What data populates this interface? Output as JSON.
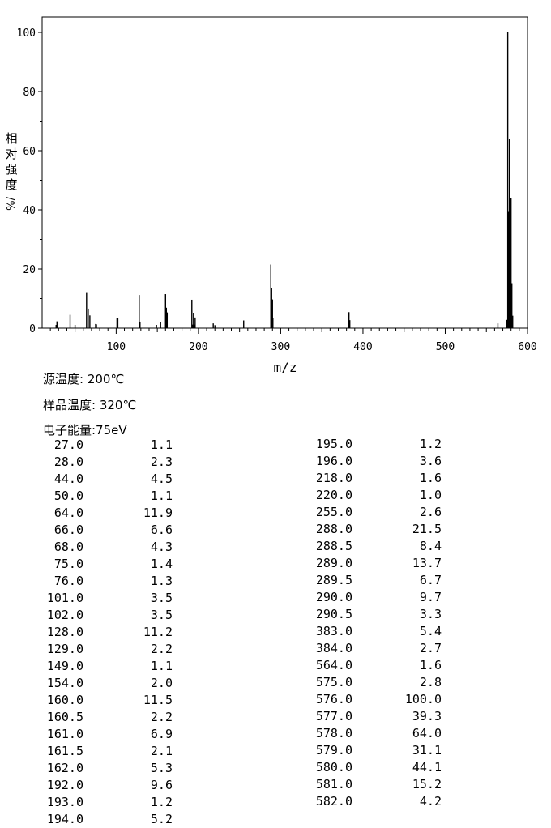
{
  "chart_data": {
    "type": "bar",
    "xlabel": "m/z",
    "ylabel_chars": [
      "相",
      "对",
      "强",
      "度"
    ],
    "ylabel_unit": "%/",
    "xlim": [
      10,
      600
    ],
    "ylim": [
      0,
      100
    ],
    "xticks": [
      100,
      200,
      300,
      400,
      500,
      600
    ],
    "yticks": [
      0,
      20,
      40,
      60,
      80,
      100
    ],
    "grid": false,
    "peaks": [
      {
        "mz": 27.0,
        "intensity": 1.1
      },
      {
        "mz": 28.0,
        "intensity": 2.3
      },
      {
        "mz": 44.0,
        "intensity": 4.5
      },
      {
        "mz": 50.0,
        "intensity": 1.1
      },
      {
        "mz": 64.0,
        "intensity": 11.9
      },
      {
        "mz": 66.0,
        "intensity": 6.6
      },
      {
        "mz": 68.0,
        "intensity": 4.3
      },
      {
        "mz": 75.0,
        "intensity": 1.4
      },
      {
        "mz": 76.0,
        "intensity": 1.3
      },
      {
        "mz": 101.0,
        "intensity": 3.5
      },
      {
        "mz": 102.0,
        "intensity": 3.5
      },
      {
        "mz": 128.0,
        "intensity": 11.2
      },
      {
        "mz": 129.0,
        "intensity": 2.2
      },
      {
        "mz": 149.0,
        "intensity": 1.1
      },
      {
        "mz": 154.0,
        "intensity": 2.0
      },
      {
        "mz": 160.0,
        "intensity": 11.5
      },
      {
        "mz": 160.5,
        "intensity": 2.2
      },
      {
        "mz": 161.0,
        "intensity": 6.9
      },
      {
        "mz": 161.5,
        "intensity": 2.1
      },
      {
        "mz": 162.0,
        "intensity": 5.3
      },
      {
        "mz": 192.0,
        "intensity": 9.6
      },
      {
        "mz": 193.0,
        "intensity": 1.2
      },
      {
        "mz": 194.0,
        "intensity": 5.2
      },
      {
        "mz": 195.0,
        "intensity": 1.2
      },
      {
        "mz": 196.0,
        "intensity": 3.6
      },
      {
        "mz": 218.0,
        "intensity": 1.6
      },
      {
        "mz": 220.0,
        "intensity": 1.0
      },
      {
        "mz": 255.0,
        "intensity": 2.6
      },
      {
        "mz": 288.0,
        "intensity": 21.5
      },
      {
        "mz": 288.5,
        "intensity": 8.4
      },
      {
        "mz": 289.0,
        "intensity": 13.7
      },
      {
        "mz": 289.5,
        "intensity": 6.7
      },
      {
        "mz": 290.0,
        "intensity": 9.7
      },
      {
        "mz": 290.5,
        "intensity": 3.3
      },
      {
        "mz": 383.0,
        "intensity": 5.4
      },
      {
        "mz": 384.0,
        "intensity": 2.7
      },
      {
        "mz": 564.0,
        "intensity": 1.6
      },
      {
        "mz": 575.0,
        "intensity": 2.8
      },
      {
        "mz": 576.0,
        "intensity": 100.0
      },
      {
        "mz": 577.0,
        "intensity": 39.3
      },
      {
        "mz": 578.0,
        "intensity": 64.0
      },
      {
        "mz": 579.0,
        "intensity": 31.1
      },
      {
        "mz": 580.0,
        "intensity": 44.1
      },
      {
        "mz": 581.0,
        "intensity": 15.2
      },
      {
        "mz": 582.0,
        "intensity": 4.2
      }
    ]
  },
  "conditions": {
    "source_temp": "源温度: 200℃",
    "sample_temp": "样品温度: 320℃",
    "electron_energy": "电子能量:75eV"
  },
  "table_left": [
    [
      "27.0",
      "1.1"
    ],
    [
      "28.0",
      "2.3"
    ],
    [
      "44.0",
      "4.5"
    ],
    [
      "50.0",
      "1.1"
    ],
    [
      "64.0",
      "11.9"
    ],
    [
      "66.0",
      "6.6"
    ],
    [
      "68.0",
      "4.3"
    ],
    [
      "75.0",
      "1.4"
    ],
    [
      "76.0",
      "1.3"
    ],
    [
      "101.0",
      "3.5"
    ],
    [
      "102.0",
      "3.5"
    ],
    [
      "128.0",
      "11.2"
    ],
    [
      "129.0",
      "2.2"
    ],
    [
      "149.0",
      "1.1"
    ],
    [
      "154.0",
      "2.0"
    ],
    [
      "160.0",
      "11.5"
    ],
    [
      "160.5",
      "2.2"
    ],
    [
      "161.0",
      "6.9"
    ],
    [
      "161.5",
      "2.1"
    ],
    [
      "162.0",
      "5.3"
    ],
    [
      "192.0",
      "9.6"
    ],
    [
      "193.0",
      "1.2"
    ],
    [
      "194.0",
      "5.2"
    ]
  ],
  "table_right": [
    [
      "195.0",
      "1.2"
    ],
    [
      "196.0",
      "3.6"
    ],
    [
      "218.0",
      "1.6"
    ],
    [
      "220.0",
      "1.0"
    ],
    [
      "255.0",
      "2.6"
    ],
    [
      "288.0",
      "21.5"
    ],
    [
      "288.5",
      "8.4"
    ],
    [
      "289.0",
      "13.7"
    ],
    [
      "289.5",
      "6.7"
    ],
    [
      "290.0",
      "9.7"
    ],
    [
      "290.5",
      "3.3"
    ],
    [
      "383.0",
      "5.4"
    ],
    [
      "384.0",
      "2.7"
    ],
    [
      "564.0",
      "1.6"
    ],
    [
      "575.0",
      "2.8"
    ],
    [
      "576.0",
      "100.0"
    ],
    [
      "577.0",
      "39.3"
    ],
    [
      "578.0",
      "64.0"
    ],
    [
      "579.0",
      "31.1"
    ],
    [
      "580.0",
      "44.1"
    ],
    [
      "581.0",
      "15.2"
    ],
    [
      "582.0",
      "4.2"
    ]
  ]
}
